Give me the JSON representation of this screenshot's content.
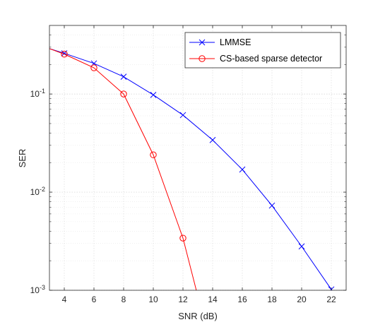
{
  "chart_data": {
    "type": "line",
    "title": "",
    "xlabel": "SNR (dB)",
    "ylabel": "SER",
    "x_ticks": [
      4,
      6,
      8,
      10,
      12,
      14,
      16,
      18,
      20,
      22
    ],
    "xlim": [
      3,
      23
    ],
    "ylim": [
      0.001,
      0.5
    ],
    "y_scale": "log",
    "y_ticks": [
      {
        "value": 0.001,
        "base": "10",
        "exp": "-3"
      },
      {
        "value": 0.01,
        "base": "10",
        "exp": "-2"
      },
      {
        "value": 0.1,
        "base": "10",
        "exp": "-1"
      }
    ],
    "grid": true,
    "minor_grid": true,
    "legend_position": "top-right",
    "series": [
      {
        "name": "LMMSE",
        "color": "#0000ff",
        "marker": "x",
        "x": [
          3,
          4,
          6,
          8,
          10,
          12,
          14,
          16,
          18,
          20,
          22
        ],
        "y": [
          0.29,
          0.26,
          0.205,
          0.15,
          0.098,
          0.061,
          0.034,
          0.017,
          0.0073,
          0.0028,
          0.00102
        ],
        "marker_x": [
          4,
          6,
          8,
          10,
          12,
          14,
          16,
          18,
          20,
          22
        ]
      },
      {
        "name": "CS-based sparse detector",
        "color": "#ff0000",
        "marker": "o",
        "x": [
          3,
          4,
          6,
          8,
          10,
          12,
          12.9
        ],
        "y": [
          0.29,
          0.255,
          0.185,
          0.1,
          0.024,
          0.0034,
          0.001
        ],
        "marker_x": [
          4,
          6,
          8,
          10,
          12
        ]
      }
    ]
  }
}
